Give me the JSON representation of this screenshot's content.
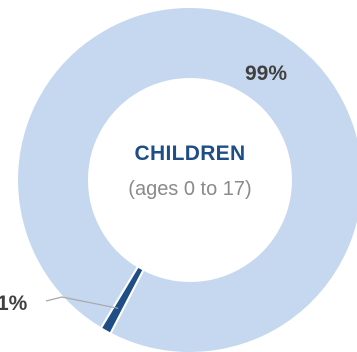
{
  "chart_data": {
    "type": "pie",
    "variant": "donut",
    "center": {
      "title": "CHILDREN",
      "subtitle": "(ages 0 to 17)"
    },
    "slices": [
      {
        "value": 99,
        "label": "99%",
        "color": "#c5d8f0"
      },
      {
        "value": 1,
        "label": "1%",
        "color": "#1f4e87"
      }
    ]
  },
  "colors": {
    "title": "#1f4e87",
    "subtitle": "#8a8a8a",
    "label": "#404040",
    "leader": "#a8a8a8"
  }
}
